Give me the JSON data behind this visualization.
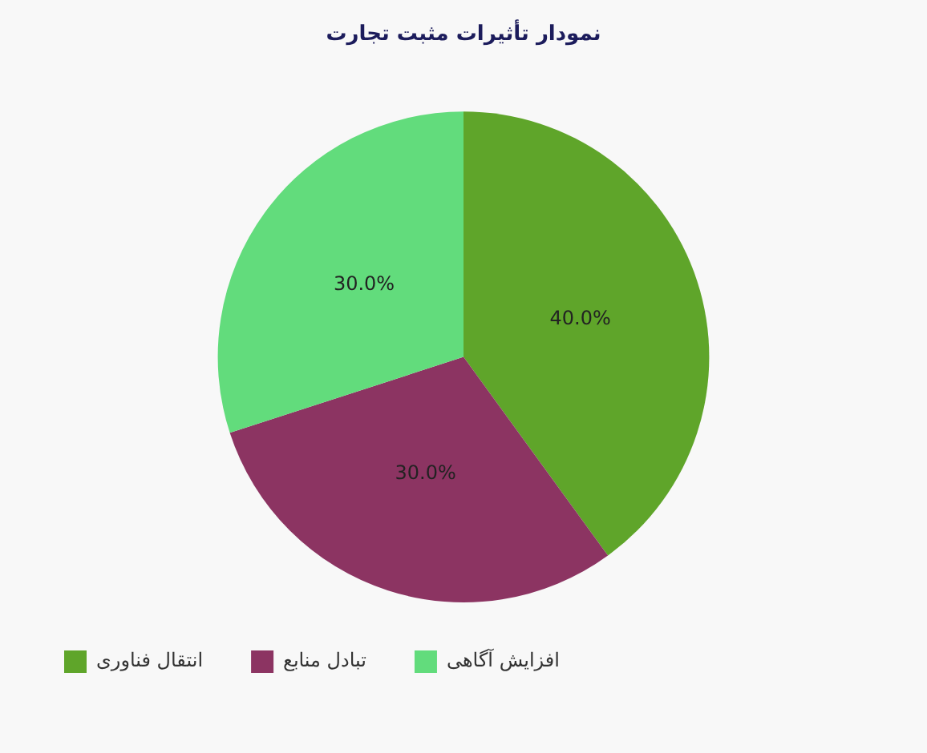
{
  "chart_data": {
    "type": "pie",
    "title": "نمودار تأثیرات مثبت تجارت",
    "categories": [
      "انتقال فناوری",
      "تبادل منابع",
      "افزایش آگاهی"
    ],
    "values": [
      40,
      30,
      30
    ],
    "value_labels": [
      "40.0%",
      "30.0%",
      "30.0%"
    ],
    "colors": [
      "#5fa52a",
      "#8c3462",
      "#62dc7c"
    ],
    "legend": "bottom left"
  }
}
